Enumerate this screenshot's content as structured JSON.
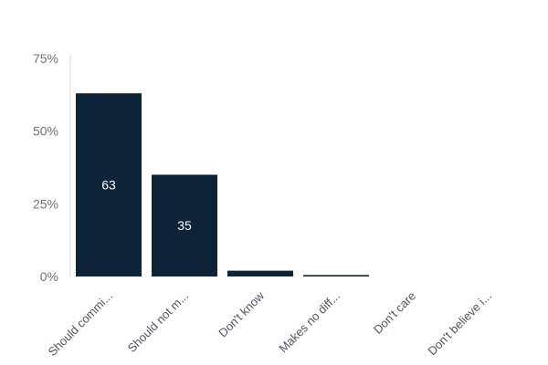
{
  "chart_data": {
    "type": "bar",
    "categories": [
      "Should commi...",
      "Should not m...",
      "Don't know",
      "Makes no diff...",
      "Don't care",
      "Don't believe i..."
    ],
    "values": [
      63,
      35,
      2,
      0.5,
      0,
      0
    ],
    "data_labels": [
      "63",
      "35",
      "",
      "",
      "",
      ""
    ],
    "ylim": [
      0,
      75
    ],
    "yticks": [
      0,
      25,
      50,
      75
    ],
    "ytick_labels": [
      "0%",
      "25%",
      "50%",
      "75%"
    ],
    "bar_color": "#0d2438",
    "axis_color": "#d1d5db",
    "label_color": "#6b7280",
    "grid": false,
    "title": "",
    "xlabel": "",
    "ylabel": ""
  }
}
